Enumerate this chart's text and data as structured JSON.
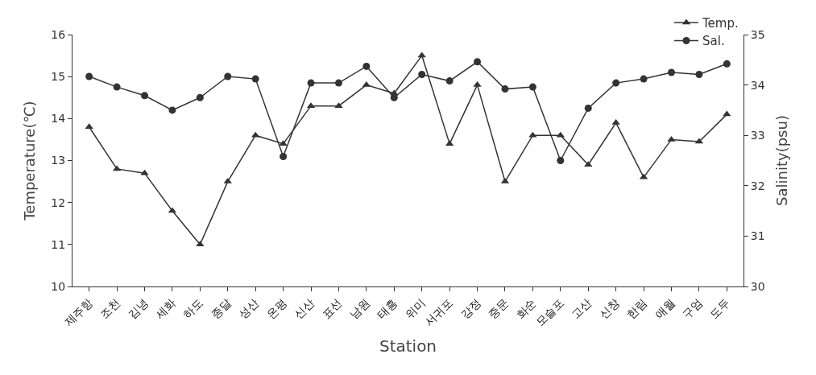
{
  "chart_data": {
    "type": "line",
    "xlabel": "Station",
    "ylabel": "Temperature(℃)",
    "y2label": "Salinity(psu)",
    "categories": [
      "제주항",
      "조천",
      "김녕",
      "세화",
      "하도",
      "종달",
      "성산",
      "온평",
      "신산",
      "표선",
      "남원",
      "태흥",
      "위미",
      "서귀포",
      "강정",
      "중문",
      "화순",
      "모슬포",
      "고산",
      "신창",
      "한림",
      "애월",
      "구엄",
      "도두"
    ],
    "series": [
      {
        "name": "Temp.",
        "color": "#333333",
        "marker": "triangle",
        "values": [
          13.8,
          12.8,
          12.7,
          11.8,
          11.0,
          12.5,
          13.6,
          13.4,
          14.3,
          14.3,
          14.8,
          14.6,
          15.5,
          13.4,
          14.8,
          12.5,
          13.6,
          13.6,
          12.9,
          13.9,
          12.6,
          13.5,
          13.45,
          14.1
        ]
      },
      {
        "name": "Sal.",
        "color": "#333333",
        "marker": "circle",
        "axis": "y2",
        "values": [
          34.17,
          33.96,
          33.79,
          33.5,
          33.75,
          34.17,
          34.12,
          32.58,
          34.04,
          34.04,
          34.37,
          33.75,
          34.21,
          34.08,
          34.46,
          33.92,
          33.96,
          32.5,
          33.54,
          34.04,
          34.12,
          34.25,
          34.21,
          34.42
        ]
      }
    ],
    "ylim": [
      10,
      16
    ],
    "yticks": [
      10,
      11,
      12,
      13,
      14,
      15,
      16
    ],
    "y2lim": [
      30,
      35
    ],
    "y2ticks": [
      30,
      31,
      32,
      33,
      34,
      35
    ],
    "legend": "top right",
    "line_style": "solid"
  }
}
